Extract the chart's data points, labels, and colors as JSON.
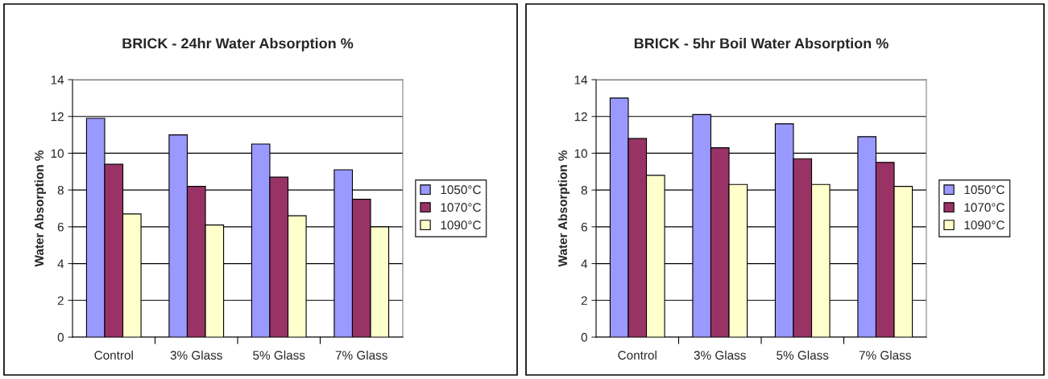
{
  "chart_data": [
    {
      "type": "bar",
      "title": "BRICK - 24hr Water Absorption %",
      "ylabel": "Water Absorption %",
      "categories": [
        "Control",
        "3% Glass",
        "5% Glass",
        "7% Glass"
      ],
      "series": [
        {
          "name": "1050°C",
          "color": "#9999ff",
          "values": [
            11.9,
            11.0,
            10.5,
            9.1
          ]
        },
        {
          "name": "1070°C",
          "color": "#993366",
          "values": [
            9.4,
            8.2,
            8.7,
            7.5
          ]
        },
        {
          "name": "1090°C",
          "color": "#ffffcc",
          "values": [
            6.7,
            6.1,
            6.6,
            6.0
          ]
        }
      ],
      "ylim": [
        0,
        14
      ],
      "yticks": [
        0,
        2,
        4,
        6,
        8,
        10,
        12,
        14
      ],
      "grid": "y",
      "legend": "right"
    },
    {
      "type": "bar",
      "title": "BRICK - 5hr Boil Water Absorption %",
      "ylabel": "Water Absorption %",
      "categories": [
        "Control",
        "3% Glass",
        "5% Glass",
        "7% Glass"
      ],
      "series": [
        {
          "name": "1050°C",
          "color": "#9999ff",
          "values": [
            13.0,
            12.1,
            11.6,
            10.9
          ]
        },
        {
          "name": "1070°C",
          "color": "#993366",
          "values": [
            10.8,
            10.3,
            9.7,
            9.5
          ]
        },
        {
          "name": "1090°C",
          "color": "#ffffcc",
          "values": [
            8.8,
            8.3,
            8.3,
            8.2
          ]
        }
      ],
      "ylim": [
        0,
        14
      ],
      "yticks": [
        0,
        2,
        4,
        6,
        8,
        10,
        12,
        14
      ],
      "grid": "y",
      "legend": "right"
    }
  ]
}
